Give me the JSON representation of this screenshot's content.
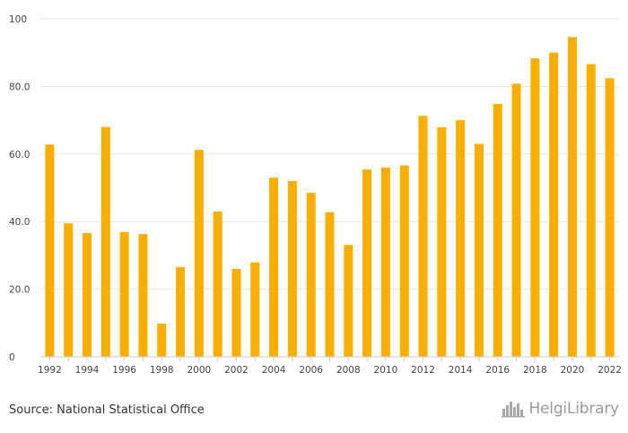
{
  "chart_data": {
    "type": "bar",
    "categories": [
      "1992",
      "1993",
      "1994",
      "1995",
      "1996",
      "1997",
      "1998",
      "1999",
      "2000",
      "2001",
      "2002",
      "2003",
      "2004",
      "2005",
      "2006",
      "2007",
      "2008",
      "2009",
      "2010",
      "2011",
      "2012",
      "2013",
      "2014",
      "2015",
      "2016",
      "2017",
      "2018",
      "2019",
      "2020",
      "2021",
      "2022"
    ],
    "x_tick_labels": [
      "1992",
      "1994",
      "1996",
      "1998",
      "2000",
      "2002",
      "2004",
      "2006",
      "2008",
      "2010",
      "2012",
      "2014",
      "2016",
      "2018",
      "2020",
      "2022"
    ],
    "values": [
      62.8,
      39.5,
      36.6,
      68.0,
      36.9,
      36.3,
      9.8,
      26.5,
      61.2,
      43.0,
      26.0,
      27.9,
      53.0,
      52.0,
      48.5,
      42.8,
      33.1,
      55.4,
      56.0,
      56.6,
      71.3,
      67.9,
      70.0,
      63.0,
      74.8,
      80.8,
      88.3,
      90.0,
      94.6,
      86.6,
      82.4
    ],
    "y_ticks": [
      0,
      20,
      40,
      60,
      80,
      100
    ],
    "y_tick_labels": [
      "0",
      "20.0",
      "40.0",
      "60.0",
      "80.0",
      "100"
    ],
    "ylim": [
      0,
      100
    ],
    "grid": true,
    "bar_color": "#f9ae00",
    "grid_color": "#e6e6e6",
    "axis_color": "#cccccc"
  },
  "footer": {
    "source": "Source: National Statistical Office",
    "brand_name": "HelgiLibrary",
    "brand_icon": "city-skyline-icon"
  }
}
